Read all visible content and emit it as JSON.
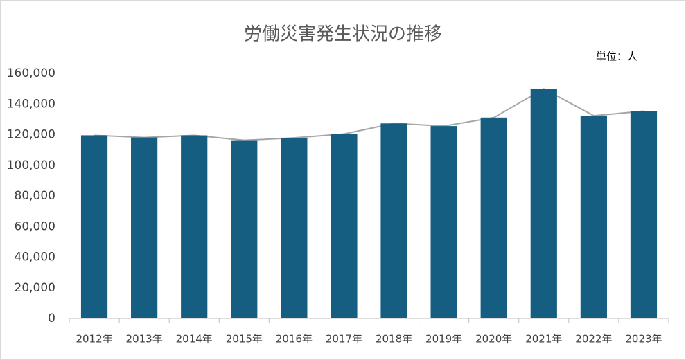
{
  "chart_data": {
    "type": "bar",
    "title": "労働災害発生状況の推移",
    "unit_note": "単位：人",
    "categories": [
      "2012年",
      "2013年",
      "2014年",
      "2015年",
      "2016年",
      "2017年",
      "2018年",
      "2019年",
      "2020年",
      "2021年",
      "2022年",
      "2023年"
    ],
    "values": [
      119576,
      118157,
      119535,
      116311,
      117910,
      120460,
      127329,
      125611,
      131156,
      149918,
      132355,
      135371
    ],
    "color": "#155e82",
    "line_color": "#a6a6a6",
    "ylim": [
      0,
      160000
    ],
    "yticks": [
      0,
      {
        "value": 20000,
        "label": "20,000"
      },
      {
        "value": 40000,
        "label": "40,000"
      },
      {
        "value": 60000,
        "label": "60,000"
      },
      {
        "value": 80000,
        "label": "80,000"
      },
      {
        "value": 100000,
        "label": "100,000"
      },
      {
        "value": 120000,
        "label": "120,000"
      },
      {
        "value": 140000,
        "label": "140,000"
      },
      {
        "value": 160000,
        "label": "160,000"
      }
    ],
    "grid": false
  }
}
